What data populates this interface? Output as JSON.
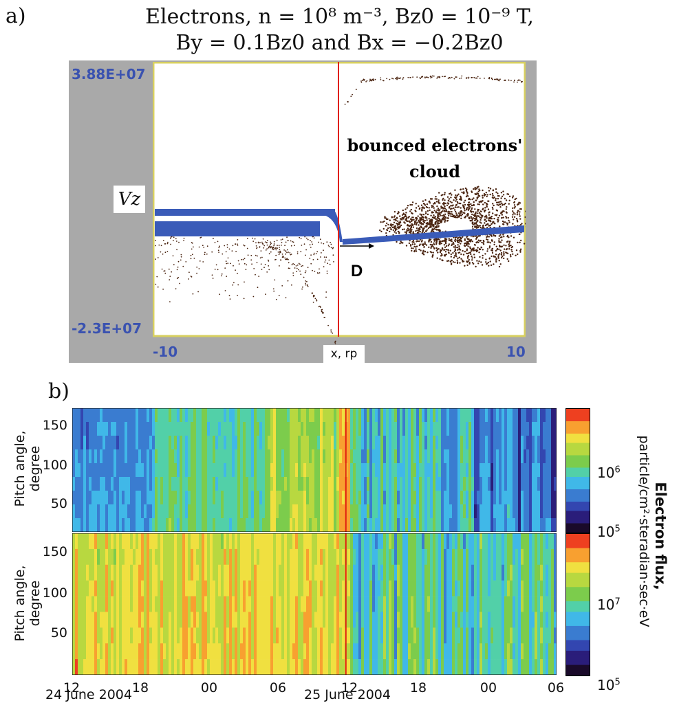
{
  "panel_a": {
    "label": "a)",
    "title_line1": "Electrons, n = 10⁸ m⁻³, Bz0 = 10⁻⁹ T,",
    "title_line2": "By = 0.1Bz0 and Bx = −0.2Bz0",
    "y_top_tick": "3.88E+07",
    "y_bottom_tick": "-2.3E+07",
    "y_label": "Vz",
    "x_left_tick": "-10",
    "x_right_tick": "10",
    "x_label": "x, rp",
    "annotation_cloud": "bounced electrons' cloud",
    "annotation_d": "D",
    "colors": {
      "accelerated": "#3a5bb8",
      "bounced": "#4a2410",
      "frame": "#d8d060",
      "separatrix": "#e02010"
    }
  },
  "panel_b": {
    "label": "b)",
    "y_label": "Pitch angle, degree",
    "y_ticks": [
      "150",
      "100",
      "50"
    ],
    "x_ticks": [
      "12",
      "18",
      "00",
      "06",
      "12",
      "18",
      "00",
      "06"
    ],
    "date_labels": [
      "24 June 2004",
      "25 June 2004"
    ],
    "colorbar_title": "Electron flux,",
    "colorbar_units": "particle/cm²·steradian·sec·eV",
    "cb_top_ticks": [
      {
        "base": "10",
        "exp": "6"
      },
      {
        "base": "10",
        "exp": "5"
      }
    ],
    "cb_bottom_ticks": [
      {
        "base": "10",
        "exp": "7"
      },
      {
        "base": "10",
        "exp": "5"
      }
    ]
  },
  "chart_data": [
    {
      "type": "scatter",
      "title": "Electrons, n = 10⁸ m⁻³, Bz0 = 10⁻⁹ T, By = 0.1Bz0 and Bx = −0.2Bz0",
      "xlabel": "x, rp",
      "ylabel": "Vz",
      "xlim": [
        -10,
        10
      ],
      "ylim": [
        -23000000,
        38800000
      ],
      "annotations": [
        "bounced electrons' cloud",
        "D"
      ],
      "series": []
    },
    {
      "type": "heatmap",
      "xlabel": "",
      "ylabel": "Pitch angle, degree",
      "ylim": [
        10,
        170
      ],
      "x_ticks": [
        "12",
        "18",
        "00",
        "06",
        "12",
        "18",
        "00",
        "06"
      ],
      "dates": [
        "24 June 2004",
        "25 June 2004"
      ],
      "colorbar_label": "Electron flux, particle/cm²·steradian·sec·eV"
    }
  ]
}
